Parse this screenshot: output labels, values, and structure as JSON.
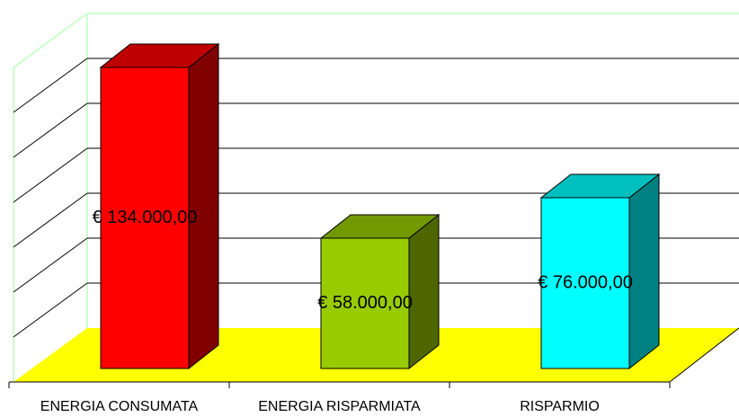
{
  "chart_data": {
    "type": "bar3d",
    "categories": [
      "ENERGIA CONSUMATA",
      "ENERGIA RISPARMIATA",
      "RISPARMIO"
    ],
    "values": [
      134000,
      58000,
      76000
    ],
    "value_labels": [
      "€ 134.000,00",
      "€ 58.000,00",
      "€ 76.000,00"
    ],
    "colors": [
      "#ff0000",
      "#99cc00",
      "#00ffff"
    ],
    "ylim": [
      0,
      140000
    ],
    "yticks": [
      0,
      20000,
      40000,
      60000,
      80000,
      100000,
      120000,
      140000
    ],
    "grid": true
  }
}
